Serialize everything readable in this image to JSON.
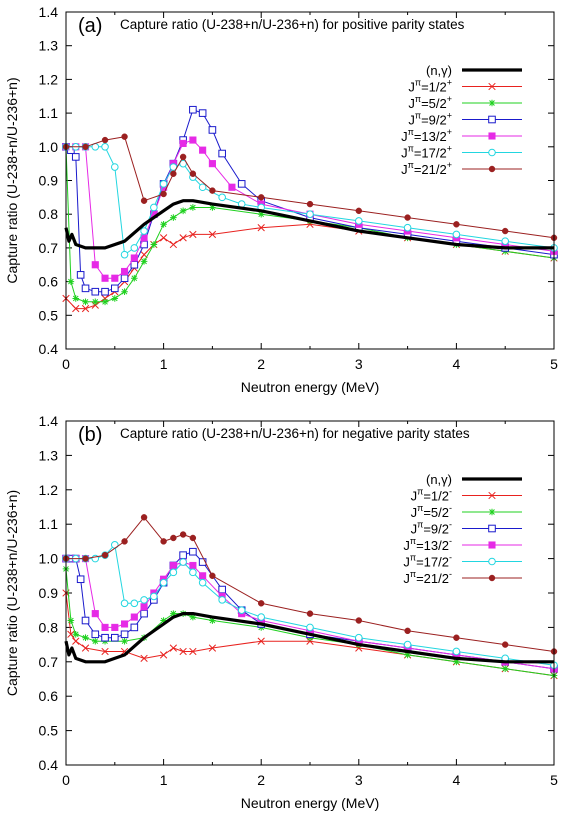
{
  "chart_data": [
    {
      "type": "line",
      "panel_label": "(a)",
      "title": "Capture ratio (U-238+n/U-236+n) for positive parity states",
      "xlabel": "Neutron energy (MeV)",
      "ylabel": "Capture ratio (U-238+n/U-236+n)",
      "xlim": [
        0,
        5
      ],
      "ylim": [
        0.4,
        1.4
      ],
      "xticks": [
        "0",
        "1",
        "2",
        "3",
        "4",
        "5"
      ],
      "yticks": [
        "0.4",
        "0.5",
        "0.6",
        "0.7",
        "0.8",
        "0.9",
        "1.0",
        "1.1",
        "1.2",
        "1.3",
        "1.4"
      ],
      "legend_position": "right",
      "series": [
        {
          "name": "(n,γ)",
          "label_main": "(n,γ)",
          "label_sup": "",
          "color": "#000000",
          "marker": "none",
          "x": [
            0,
            0.03,
            0.06,
            0.1,
            0.2,
            0.4,
            0.6,
            0.8,
            1.0,
            1.1,
            1.2,
            1.3,
            1.5,
            2.0,
            2.5,
            3.0,
            3.5,
            4.0,
            4.5,
            5.0
          ],
          "y": [
            0.76,
            0.72,
            0.74,
            0.71,
            0.7,
            0.7,
            0.72,
            0.77,
            0.81,
            0.83,
            0.84,
            0.84,
            0.83,
            0.81,
            0.78,
            0.75,
            0.73,
            0.71,
            0.7,
            0.7
          ]
        },
        {
          "name": "J^π=1/2^+",
          "label_main": "J",
          "label_sup": "π",
          "label_rest": "=1/2",
          "label_parity": "+",
          "color": "#e8221f",
          "marker": "x",
          "x": [
            0,
            0.1,
            0.2,
            0.3,
            0.4,
            0.5,
            0.6,
            0.7,
            0.8,
            0.9,
            1.0,
            1.1,
            1.2,
            1.3,
            1.5,
            2.0,
            2.5,
            3.0,
            3.5,
            4.0,
            4.5,
            5.0
          ],
          "y": [
            0.55,
            0.52,
            0.52,
            0.53,
            0.55,
            0.57,
            0.6,
            0.64,
            0.68,
            0.71,
            0.73,
            0.71,
            0.73,
            0.74,
            0.74,
            0.76,
            0.77,
            0.75,
            0.73,
            0.71,
            0.69,
            0.67
          ]
        },
        {
          "name": "J^π=5/2^+",
          "label_main": "J",
          "label_sup": "π",
          "label_rest": "=5/2",
          "label_parity": "+",
          "color": "#1fd11f",
          "marker": "star",
          "x": [
            0,
            0.05,
            0.1,
            0.2,
            0.3,
            0.4,
            0.5,
            0.6,
            0.7,
            0.8,
            0.9,
            1.0,
            1.1,
            1.2,
            1.3,
            1.5,
            2.0,
            2.5,
            3.0,
            3.5,
            4.0,
            4.5,
            5.0
          ],
          "y": [
            1.0,
            0.6,
            0.55,
            0.54,
            0.54,
            0.54,
            0.55,
            0.57,
            0.61,
            0.66,
            0.71,
            0.77,
            0.79,
            0.81,
            0.82,
            0.82,
            0.8,
            0.78,
            0.76,
            0.73,
            0.71,
            0.69,
            0.67
          ]
        },
        {
          "name": "J^π=9/2^+",
          "label_main": "J",
          "label_sup": "π",
          "label_rest": "=9/2",
          "label_parity": "+",
          "color": "#1a1acc",
          "marker": "square",
          "x": [
            0,
            0.05,
            0.1,
            0.15,
            0.2,
            0.3,
            0.4,
            0.5,
            0.6,
            0.7,
            0.8,
            0.9,
            1.0,
            1.1,
            1.2,
            1.3,
            1.4,
            1.5,
            1.6,
            1.8,
            2.0,
            2.5,
            3.0,
            3.5,
            4.0,
            4.5,
            5.0
          ],
          "y": [
            1.0,
            0.99,
            0.97,
            0.62,
            0.58,
            0.57,
            0.57,
            0.58,
            0.61,
            0.65,
            0.71,
            0.8,
            0.89,
            0.95,
            1.02,
            1.11,
            1.1,
            1.05,
            0.98,
            0.89,
            0.84,
            0.79,
            0.76,
            0.74,
            0.72,
            0.7,
            0.68
          ]
        },
        {
          "name": "J^π=13/2^+",
          "label_main": "J",
          "label_sup": "π",
          "label_rest": "=13/2",
          "label_parity": "+",
          "color": "#e62ae6",
          "marker": "filledsquare",
          "x": [
            0,
            0.1,
            0.2,
            0.3,
            0.4,
            0.5,
            0.6,
            0.7,
            0.8,
            0.9,
            1.0,
            1.1,
            1.2,
            1.3,
            1.4,
            1.5,
            1.7,
            2.0,
            2.5,
            3.0,
            3.5,
            4.0,
            4.5,
            5.0
          ],
          "y": [
            1.0,
            1.0,
            1.0,
            0.65,
            0.61,
            0.61,
            0.63,
            0.67,
            0.73,
            0.8,
            0.88,
            0.95,
            1.01,
            1.02,
            0.99,
            0.95,
            0.88,
            0.83,
            0.8,
            0.77,
            0.75,
            0.73,
            0.71,
            0.69
          ]
        },
        {
          "name": "J^π=17/2^+",
          "label_main": "J",
          "label_sup": "π",
          "label_rest": "=17/2",
          "label_parity": "+",
          "color": "#22d6e0",
          "marker": "circle",
          "x": [
            0,
            0.1,
            0.2,
            0.3,
            0.4,
            0.5,
            0.6,
            0.7,
            0.8,
            0.9,
            1.0,
            1.1,
            1.2,
            1.3,
            1.4,
            1.6,
            1.8,
            2.0,
            2.5,
            3.0,
            3.5,
            4.0,
            4.5,
            5.0
          ],
          "y": [
            1.0,
            1.0,
            1.0,
            1.0,
            1.0,
            0.94,
            0.68,
            0.7,
            0.75,
            0.82,
            0.89,
            0.94,
            0.95,
            0.91,
            0.88,
            0.85,
            0.83,
            0.82,
            0.8,
            0.78,
            0.76,
            0.74,
            0.72,
            0.7
          ]
        },
        {
          "name": "J^π=21/2^+",
          "label_main": "J",
          "label_sup": "π",
          "label_rest": "=21/2",
          "label_parity": "+",
          "color": "#9b2020",
          "marker": "filledcircle",
          "x": [
            0,
            0.2,
            0.4,
            0.6,
            0.8,
            1.0,
            1.1,
            1.2,
            1.3,
            1.5,
            2.0,
            2.5,
            3.0,
            3.5,
            4.0,
            4.5,
            5.0
          ],
          "y": [
            1.0,
            1.0,
            1.02,
            1.03,
            0.84,
            0.86,
            0.92,
            0.97,
            0.92,
            0.87,
            0.85,
            0.83,
            0.81,
            0.79,
            0.77,
            0.75,
            0.73
          ]
        }
      ]
    },
    {
      "type": "line",
      "panel_label": "(b)",
      "title": "Capture ratio (U-238+n/U-236+n) for negative parity states",
      "xlabel": "Neutron energy (MeV)",
      "ylabel": "Capture ratio (U-238+n/U-236+n)",
      "xlim": [
        0,
        5
      ],
      "ylim": [
        0.4,
        1.4
      ],
      "xticks": [
        "0",
        "1",
        "2",
        "3",
        "4",
        "5"
      ],
      "yticks": [
        "0.4",
        "0.5",
        "0.6",
        "0.7",
        "0.8",
        "0.9",
        "1.0",
        "1.1",
        "1.2",
        "1.3",
        "1.4"
      ],
      "legend_position": "right",
      "series": [
        {
          "name": "(n,γ)",
          "label_main": "(n,γ)",
          "label_sup": "",
          "color": "#000000",
          "marker": "none",
          "x": [
            0,
            0.03,
            0.06,
            0.1,
            0.2,
            0.4,
            0.6,
            0.8,
            1.0,
            1.1,
            1.2,
            1.3,
            1.5,
            2.0,
            2.5,
            3.0,
            3.5,
            4.0,
            4.5,
            5.0
          ],
          "y": [
            0.76,
            0.72,
            0.74,
            0.71,
            0.7,
            0.7,
            0.72,
            0.77,
            0.81,
            0.83,
            0.84,
            0.84,
            0.83,
            0.81,
            0.78,
            0.75,
            0.73,
            0.71,
            0.7,
            0.7
          ]
        },
        {
          "name": "J^π=1/2^-",
          "label_main": "J",
          "label_sup": "π",
          "label_rest": "=1/2",
          "label_parity": "-",
          "color": "#e8221f",
          "marker": "x",
          "x": [
            0,
            0.05,
            0.1,
            0.2,
            0.4,
            0.6,
            0.8,
            1.0,
            1.1,
            1.2,
            1.3,
            1.5,
            2.0,
            2.5,
            3.0,
            3.5,
            4.0,
            4.5,
            5.0
          ],
          "y": [
            0.9,
            0.78,
            0.76,
            0.74,
            0.73,
            0.73,
            0.71,
            0.72,
            0.74,
            0.73,
            0.73,
            0.74,
            0.76,
            0.76,
            0.74,
            0.72,
            0.7,
            0.68,
            0.66
          ]
        },
        {
          "name": "J^π=5/2^-",
          "label_main": "J",
          "label_sup": "π",
          "label_rest": "=5/2",
          "label_parity": "-",
          "color": "#1fd11f",
          "marker": "star",
          "x": [
            0,
            0.05,
            0.1,
            0.2,
            0.3,
            0.4,
            0.6,
            0.8,
            1.0,
            1.1,
            1.2,
            1.3,
            1.5,
            2.0,
            2.5,
            3.0,
            3.5,
            4.0,
            4.5,
            5.0
          ],
          "y": [
            0.97,
            0.82,
            0.78,
            0.77,
            0.76,
            0.76,
            0.76,
            0.77,
            0.82,
            0.84,
            0.84,
            0.83,
            0.82,
            0.8,
            0.77,
            0.75,
            0.72,
            0.7,
            0.68,
            0.66
          ]
        },
        {
          "name": "J^π=9/2^-",
          "label_main": "J",
          "label_sup": "π",
          "label_rest": "=9/2",
          "label_parity": "-",
          "color": "#1a1acc",
          "marker": "square",
          "x": [
            0,
            0.05,
            0.1,
            0.15,
            0.2,
            0.3,
            0.4,
            0.5,
            0.6,
            0.7,
            0.8,
            0.9,
            1.0,
            1.1,
            1.2,
            1.3,
            1.4,
            1.6,
            1.8,
            2.0,
            2.5,
            3.0,
            3.5,
            4.0,
            4.5,
            5.0
          ],
          "y": [
            1.0,
            1.0,
            1.0,
            0.94,
            0.82,
            0.78,
            0.77,
            0.77,
            0.78,
            0.8,
            0.84,
            0.88,
            0.93,
            0.98,
            1.01,
            1.02,
            0.99,
            0.91,
            0.85,
            0.81,
            0.78,
            0.76,
            0.74,
            0.72,
            0.7,
            0.68
          ]
        },
        {
          "name": "J^π=13/2^-",
          "label_main": "J",
          "label_sup": "π",
          "label_rest": "=13/2",
          "label_parity": "-",
          "color": "#e62ae6",
          "marker": "filledsquare",
          "x": [
            0,
            0.1,
            0.2,
            0.3,
            0.4,
            0.5,
            0.6,
            0.7,
            0.8,
            0.9,
            1.0,
            1.1,
            1.2,
            1.3,
            1.4,
            1.6,
            1.8,
            2.0,
            2.5,
            3.0,
            3.5,
            4.0,
            4.5,
            5.0
          ],
          "y": [
            1.0,
            1.0,
            1.0,
            0.84,
            0.8,
            0.8,
            0.81,
            0.83,
            0.86,
            0.9,
            0.94,
            0.98,
            0.99,
            0.98,
            0.95,
            0.89,
            0.84,
            0.82,
            0.79,
            0.76,
            0.74,
            0.72,
            0.7,
            0.68
          ]
        },
        {
          "name": "J^π=17/2^-",
          "label_main": "J",
          "label_sup": "π",
          "label_rest": "=17/2",
          "label_parity": "-",
          "color": "#22d6e0",
          "marker": "circle",
          "x": [
            0,
            0.1,
            0.2,
            0.3,
            0.4,
            0.5,
            0.6,
            0.7,
            0.8,
            0.9,
            1.0,
            1.1,
            1.2,
            1.3,
            1.4,
            1.6,
            1.8,
            2.0,
            2.5,
            3.0,
            3.5,
            4.0,
            4.5,
            5.0
          ],
          "y": [
            1.0,
            1.0,
            1.0,
            1.0,
            1.01,
            1.04,
            0.87,
            0.87,
            0.88,
            0.89,
            0.93,
            0.96,
            0.99,
            0.96,
            0.93,
            0.88,
            0.85,
            0.83,
            0.8,
            0.77,
            0.75,
            0.73,
            0.71,
            0.69
          ]
        },
        {
          "name": "J^π=21/2^-",
          "label_main": "J",
          "label_sup": "π",
          "label_rest": "=21/2",
          "label_parity": "-",
          "color": "#9b2020",
          "marker": "filledcircle",
          "x": [
            0,
            0.2,
            0.4,
            0.6,
            0.8,
            1.0,
            1.1,
            1.2,
            1.3,
            1.5,
            2.0,
            2.5,
            3.0,
            3.5,
            4.0,
            4.5,
            5.0
          ],
          "y": [
            1.0,
            1.0,
            1.01,
            1.05,
            1.12,
            1.05,
            1.06,
            1.07,
            1.06,
            0.95,
            0.87,
            0.84,
            0.82,
            0.79,
            0.77,
            0.75,
            0.73
          ]
        }
      ]
    }
  ]
}
